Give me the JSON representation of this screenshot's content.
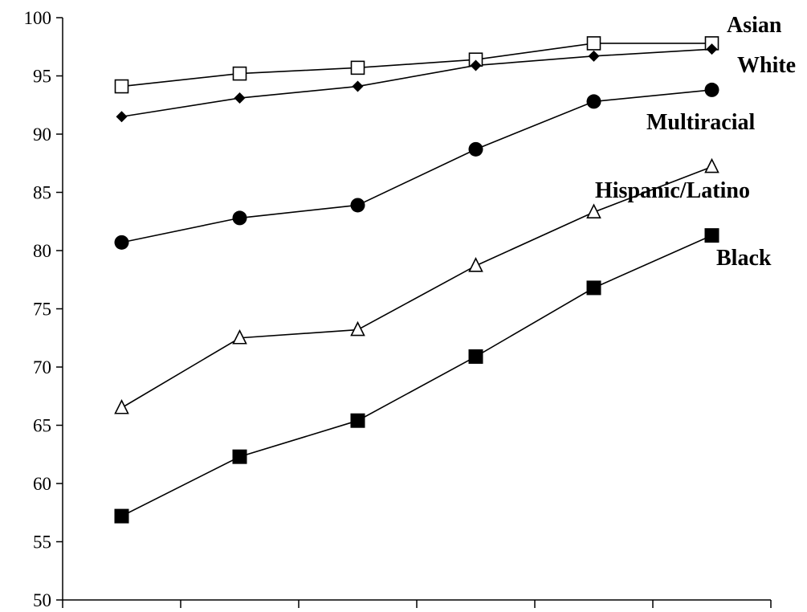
{
  "chart_data": {
    "type": "line",
    "title": "",
    "xlabel": "",
    "ylabel": "",
    "ylim": [
      50,
      100
    ],
    "yticks": [
      50,
      55,
      60,
      65,
      70,
      75,
      80,
      85,
      90,
      95,
      100
    ],
    "ytick_labels": [
      "50",
      "55",
      "60",
      "65",
      "70",
      "75",
      "80",
      "85",
      "90",
      "95",
      "100"
    ],
    "x": [
      1,
      2,
      3,
      4,
      5,
      6
    ],
    "grid": false,
    "legend": "direct labels at right end of lines",
    "series": [
      {
        "name": "Asian",
        "marker": "square-open",
        "values": [
          94.1,
          95.2,
          95.7,
          96.4,
          97.8,
          97.8
        ]
      },
      {
        "name": "White",
        "marker": "diamond-filled",
        "values": [
          91.5,
          93.1,
          94.1,
          95.9,
          96.7,
          97.3
        ]
      },
      {
        "name": "Multiracial",
        "marker": "circle-filled",
        "values": [
          80.7,
          82.8,
          83.9,
          88.7,
          92.8,
          93.8
        ]
      },
      {
        "name": "Hispanic/Latino",
        "marker": "triangle-open",
        "values": [
          66.5,
          72.5,
          73.2,
          78.7,
          83.3,
          87.2
        ]
      },
      {
        "name": "Black",
        "marker": "square-filled",
        "values": [
          57.2,
          62.3,
          65.4,
          70.9,
          76.8,
          81.3
        ]
      }
    ]
  }
}
